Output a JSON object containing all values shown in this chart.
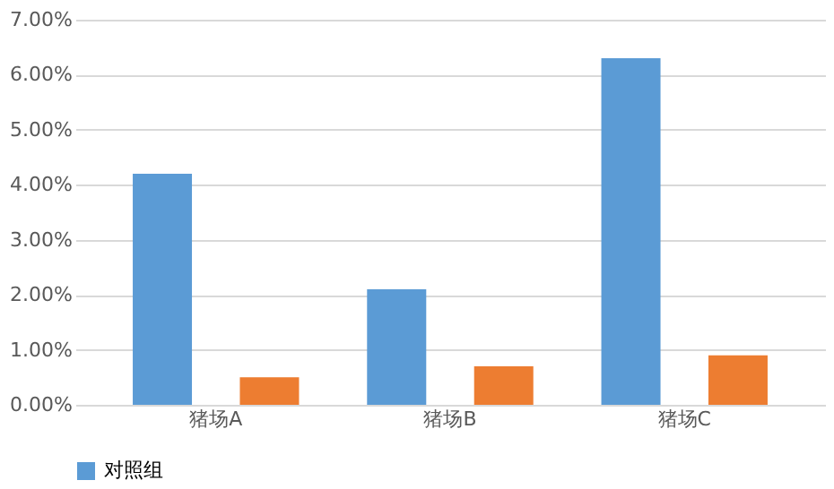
{
  "chart_data": {
    "type": "bar",
    "categories": [
      "猪场A",
      "猪场B",
      "猪场C"
    ],
    "series": [
      {
        "name": "对照组",
        "color": "#5b9bd5",
        "values": [
          4.2,
          2.1,
          6.3
        ]
      },
      {
        "color": "#ed7d31",
        "values": [
          0.5,
          0.7,
          0.9
        ]
      }
    ],
    "ylim": [
      0,
      7
    ],
    "yticks": [
      {
        "value": 0,
        "label": "0.00%"
      },
      {
        "value": 1,
        "label": "1.00%"
      },
      {
        "value": 2,
        "label": "2.00%"
      },
      {
        "value": 3,
        "label": "3.00%"
      },
      {
        "value": 4,
        "label": "4.00%"
      },
      {
        "value": 5,
        "label": "5.00%"
      },
      {
        "value": 6,
        "label": "6.00%"
      },
      {
        "value": 7,
        "label": "7.00%"
      }
    ],
    "grid": "y",
    "legend": "bottom"
  }
}
